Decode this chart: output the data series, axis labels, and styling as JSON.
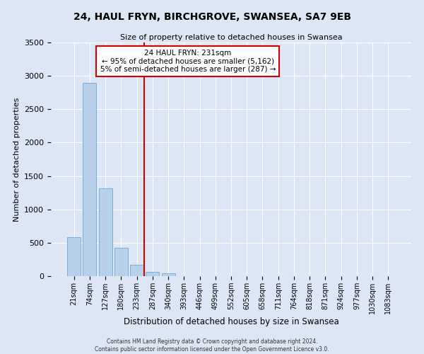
{
  "title": "24, HAUL FRYN, BIRCHGROVE, SWANSEA, SA7 9EB",
  "subtitle": "Size of property relative to detached houses in Swansea",
  "xlabel": "Distribution of detached houses by size in Swansea",
  "ylabel": "Number of detached properties",
  "bin_labels": [
    "21sqm",
    "74sqm",
    "127sqm",
    "180sqm",
    "233sqm",
    "287sqm",
    "340sqm",
    "393sqm",
    "446sqm",
    "499sqm",
    "552sqm",
    "605sqm",
    "658sqm",
    "711sqm",
    "764sqm",
    "818sqm",
    "871sqm",
    "924sqm",
    "977sqm",
    "1030sqm",
    "1083sqm"
  ],
  "bar_heights": [
    580,
    2900,
    1310,
    420,
    170,
    65,
    45,
    0,
    0,
    0,
    0,
    0,
    0,
    0,
    0,
    0,
    0,
    0,
    0,
    0,
    0
  ],
  "bar_color": "#b8d0ea",
  "bar_edgecolor": "#7aaed4",
  "ylim": [
    0,
    3500
  ],
  "yticks": [
    0,
    500,
    1000,
    1500,
    2000,
    2500,
    3000,
    3500
  ],
  "vline_color": "#cc0000",
  "annotation_line1": "24 HAUL FRYN: 231sqm",
  "annotation_line2": "← 95% of detached houses are smaller (5,162)",
  "annotation_line3": "5% of semi-detached houses are larger (287) →",
  "annotation_box_color": "#ffffff",
  "annotation_box_edgecolor": "#cc0000",
  "footer_line1": "Contains HM Land Registry data © Crown copyright and database right 2024.",
  "footer_line2": "Contains public sector information licensed under the Open Government Licence v3.0.",
  "bg_color": "#dce6f5",
  "plot_bg_color": "#dce6f5"
}
